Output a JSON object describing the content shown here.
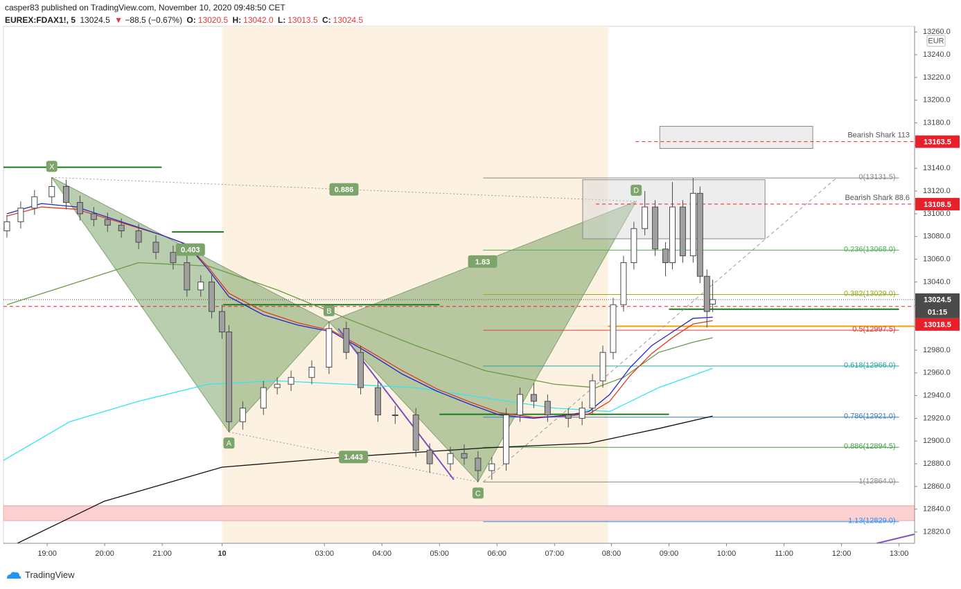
{
  "header": {
    "line1": "casper83 published on TradingView.com, November 10, 2020 09:48:50 CET",
    "symbol": "EUREX:FDAX1!, 5",
    "last": "13024.5",
    "arrow": "▼",
    "change": "−88.5 (−0.67%)",
    "ohlc_labels": [
      "O:",
      "H:",
      "L:",
      "C:"
    ],
    "ohlc_values": [
      "13020.5",
      "13042.0",
      "13013.5",
      "13024.5"
    ]
  },
  "footer": {
    "brand": "TradingView"
  },
  "chart_data": {
    "type": "candlestick",
    "currency": "EUR",
    "up_color": "#ffffff",
    "down_color": "#a0a0a0",
    "wick_color": "#4a4a4a",
    "x": [
      -0.7,
      -0.46,
      -0.22,
      0.08,
      0.33,
      0.57,
      0.81,
      1.05,
      1.29,
      1.59,
      1.89,
      2.19,
      2.43,
      2.67,
      2.86,
      3.04,
      3.16,
      3.4,
      3.76,
      4.0,
      4.24,
      4.6,
      4.9,
      5.2,
      5.45,
      5.75,
      6.05,
      6.41,
      6.65,
      7.01,
      7.25,
      7.49,
      7.73,
      7.98,
      8.22,
      8.46,
      8.7,
      9.06,
      9.3,
      9.48,
      9.66,
      9.84,
      10.02,
      10.2,
      10.39,
      10.57,
      10.75,
      10.87,
      11.05,
      11.23,
      11.35,
      11.47,
      11.57
    ],
    "open": [
      13085,
      13093,
      13105,
      13115,
      13124,
      13110,
      13100,
      13095,
      13090,
      13085,
      13075,
      13066,
      13057,
      13033,
      13040,
      13014,
      12996,
      12917,
      12929,
      12947,
      12950,
      12956,
      12965,
      12999,
      12978,
      12947,
      12923,
      12923,
      12892,
      12880,
      12889,
      12885,
      12874,
      12880,
      12923,
      12941,
      12935,
      12923,
      12920,
      12929,
      12953,
      12978,
      13020,
      13057,
      13087,
      13106,
      13069,
      13057,
      13106,
      13063,
      13118,
      13045,
      13020.5
    ],
    "high": [
      13099,
      13111,
      13121,
      13132,
      13130,
      13116,
      13106,
      13101,
      13096,
      13091,
      13081,
      13072,
      13063,
      13046,
      13046,
      13020,
      13002,
      12935,
      12953,
      12956,
      12962,
      12971,
      13005,
      13005,
      12984,
      12953,
      12931,
      12929,
      12898,
      12895,
      12897,
      12891,
      12886,
      12929,
      12947,
      12951,
      12941,
      12929,
      12935,
      12959,
      12984,
      13026,
      13063,
      13093,
      13120,
      13112,
      13075,
      13128,
      13112,
      13131.5,
      13124,
      13051,
      13042
    ],
    "low": [
      13079,
      13087,
      13099,
      13109,
      13104,
      13094,
      13089,
      13084,
      13079,
      13069,
      13060,
      13051,
      13027,
      13027,
      13008,
      12990,
      12908,
      12910,
      12923,
      12941,
      12944,
      12950,
      12959,
      12972,
      12941,
      12917,
      12915,
      12886,
      12872,
      12874,
      12879,
      12864,
      12866,
      12874,
      12917,
      12929,
      12917,
      12912,
      12914,
      12923,
      12947,
      12972,
      13014,
      13051,
      13081,
      13063,
      13045,
      13051,
      13057,
      13057,
      13039,
      13000,
      13013.5
    ],
    "close": [
      13093,
      13105,
      13115,
      13124,
      13110,
      13100,
      13095,
      13090,
      13085,
      13075,
      13066,
      13057,
      13033,
      13040,
      13014,
      12996,
      12917,
      12929,
      12947,
      12950,
      12956,
      12965,
      12999,
      12978,
      12947,
      12923,
      12923,
      12892,
      12880,
      12889,
      12885,
      12874,
      12880,
      12923,
      12941,
      12935,
      12923,
      12920,
      12929,
      12953,
      12978,
      13020,
      13057,
      13087,
      13106,
      13069,
      13057,
      13106,
      13063,
      13118,
      13045,
      13014,
      13024.5
    ],
    "xlim": [
      -0.76,
      15.08
    ],
    "xticks": [
      {
        "value": 0,
        "label": "19:00"
      },
      {
        "value": 1,
        "label": "20:00"
      },
      {
        "value": 2,
        "label": "21:00"
      },
      {
        "value": 3.04,
        "label": "10"
      },
      {
        "value": 4.82,
        "label": "03:00"
      },
      {
        "value": 5.82,
        "label": "04:00"
      },
      {
        "value": 6.82,
        "label": "05:00"
      },
      {
        "value": 7.82,
        "label": "06:00"
      },
      {
        "value": 8.82,
        "label": "07:00"
      },
      {
        "value": 9.81,
        "label": "08:00"
      },
      {
        "value": 10.81,
        "label": "09:00"
      },
      {
        "value": 11.81,
        "label": "10:00"
      },
      {
        "value": 12.81,
        "label": "11:00"
      },
      {
        "value": 13.81,
        "label": "12:00"
      },
      {
        "value": 14.81,
        "label": "13:00"
      }
    ],
    "ylim": [
      12810,
      13265
    ],
    "yticks": [
      {
        "value": 12820,
        "label": "12820.0"
      },
      {
        "value": 12840,
        "label": "12840.0"
      },
      {
        "value": 12860,
        "label": "12860.0"
      },
      {
        "value": 12880,
        "label": "12880.0"
      },
      {
        "value": 12900,
        "label": "12900.0"
      },
      {
        "value": 12920,
        "label": "12920.0"
      },
      {
        "value": 12940,
        "label": "12940.0"
      },
      {
        "value": 12960,
        "label": "12960.0"
      },
      {
        "value": 12980,
        "label": "12980.0"
      },
      {
        "value": 13000,
        "label": "13000.0"
      },
      {
        "value": 13020,
        "label": "13020.0"
      },
      {
        "value": 13040,
        "label": "13040.0"
      },
      {
        "value": 13060,
        "label": "13060.0"
      },
      {
        "value": 13080,
        "label": "13080.0"
      },
      {
        "value": 13100,
        "label": "13100.0"
      },
      {
        "value": 13120,
        "label": "13120.0"
      },
      {
        "value": 13140,
        "label": "13140.0"
      },
      {
        "value": 13160,
        "label": "13160.0"
      },
      {
        "value": 13180,
        "label": "13180.0"
      },
      {
        "value": 13200,
        "label": "13200.0"
      },
      {
        "value": 13220,
        "label": "13220.0"
      },
      {
        "value": 13240,
        "label": "13240.0"
      },
      {
        "value": 13260,
        "label": "13260.0"
      }
    ],
    "grid": false,
    "session": {
      "start": 3.04,
      "end": 9.75,
      "color": "#fdf1e2"
    },
    "zone": {
      "low": 12830,
      "high": 12843,
      "color": "#fbd0d0"
    },
    "lines": [
      {
        "color": "#33e4f2",
        "x": [
          -0.76,
          0.39,
          1.59,
          2.8,
          4.0,
          5.2,
          6.41,
          7.61,
          8.82,
          9.78,
          10.63,
          11.57
        ],
        "values": [
          12883,
          12917,
          12935,
          12950,
          12953,
          12950,
          12947,
          12938,
          12929,
          12926,
          12947,
          12964
        ]
      },
      {
        "color": "#111111",
        "x": [
          -0.52,
          0.99,
          3.04,
          5.2,
          7.61,
          9.42,
          10.63,
          11.57
        ],
        "values": [
          12810,
          12847,
          12877,
          12886,
          12894,
          12898,
          12911,
          12922
        ]
      },
      {
        "color": "#6a9a45",
        "x": [
          -0.7,
          1.59,
          2.8,
          4.0,
          5.2,
          6.41,
          7.61,
          8.82,
          9.54,
          10.02,
          10.63,
          11.23,
          11.57
        ],
        "values": [
          13020,
          13057,
          13054,
          13033,
          13008,
          12984,
          12962,
          12950,
          12947,
          12956,
          12978,
          12987,
          12991
        ]
      },
      {
        "color": "#e03a20",
        "x": [
          -0.7,
          -0.1,
          0.51,
          1.23,
          1.95,
          2.43,
          2.8,
          3.16,
          3.76,
          4.36,
          4.96,
          5.57,
          6.17,
          6.77,
          7.37,
          7.86,
          8.46,
          9.06,
          9.42,
          9.78,
          10.14,
          10.51,
          10.87,
          11.23,
          11.57
        ],
        "values": [
          13098,
          13106,
          13104,
          13093,
          13082,
          13073,
          13053,
          13030,
          13014,
          13004,
          12997,
          12980,
          12962,
          12946,
          12934,
          12925,
          12921,
          12922,
          12924,
          12935,
          12958,
          12977,
          12991,
          13003,
          13006
        ]
      },
      {
        "color": "#2424c8",
        "x": [
          -0.7,
          -0.1,
          0.51,
          1.23,
          1.95,
          2.43,
          2.8,
          3.16,
          3.76,
          4.36,
          4.96,
          5.57,
          6.17,
          6.77,
          7.37,
          7.86,
          8.46,
          9.06,
          9.42,
          9.78,
          10.14,
          10.51,
          10.87,
          11.23,
          11.57
        ],
        "values": [
          13100,
          13109,
          13106,
          13094,
          13082,
          13073,
          13051,
          13027,
          13011,
          13002,
          12996,
          12978,
          12959,
          12944,
          12932,
          12923,
          12920,
          12923,
          12926,
          12941,
          12965,
          12984,
          12996,
          13008,
          13009
        ]
      }
    ],
    "levels": [
      {
        "value": 13141,
        "x0": -0.76,
        "x1": 1.99,
        "color": "#1b7a1b"
      },
      {
        "value": 13084,
        "x0": 2.17,
        "x1": 3.07,
        "color": "#1b7a1b"
      },
      {
        "value": 13020,
        "x0": 3.06,
        "x1": 6.82,
        "color": "#1b7a1b"
      },
      {
        "value": 12923.5,
        "x0": 6.82,
        "x1": 10.81,
        "color": "#1b7a1b"
      },
      {
        "value": 13016,
        "x0": 10.81,
        "x1": 14.81,
        "color": "#1b7a1b"
      },
      {
        "value": 13001,
        "x0": 9.75,
        "x1": 15.08,
        "color": "#f0a000"
      }
    ],
    "trendlines": [
      {
        "x": [
          7.58,
          13.72
        ],
        "values": [
          12864,
          13131.5
        ],
        "color": "#999999",
        "style": "dashed"
      },
      {
        "x": [
          5.06,
          7.07
        ],
        "values": [
          12999,
          12866
        ],
        "color": "#7a4fc0",
        "style": "solid"
      },
      {
        "x": [
          14.42,
          15.08
        ],
        "values": [
          12810,
          12818
        ],
        "color": "#7a4fc0",
        "style": "solid"
      }
    ],
    "fib": {
      "x0": 7.58,
      "x1": 14.81,
      "levels": [
        {
          "label": "0(13131.5)",
          "value": 13131.5,
          "color": "#888888"
        },
        {
          "label": "0.236(13068.0)",
          "value": 13068,
          "color": "#4caf50"
        },
        {
          "label": "0.382(13029.0)",
          "value": 13029,
          "color": "#9aa820"
        },
        {
          "label": "0.5(12997.5)",
          "value": 12997.5,
          "color": "#e53935"
        },
        {
          "label": "0.618(12966.0)",
          "value": 12966,
          "color": "#26a69a"
        },
        {
          "label": "0.786(12921.0)",
          "value": 12921,
          "color": "#3a7fb5"
        },
        {
          "label": "0.886(12894.5)",
          "value": 12894.5,
          "color": "#43a047"
        },
        {
          "label": "1(12864.0)",
          "value": 12864,
          "color": "#888888"
        },
        {
          "label": "1.13(12829.0)",
          "value": 12829,
          "color": "#2196f3"
        }
      ]
    },
    "pattern": {
      "color": "#7da56b",
      "points": [
        {
          "label": "X",
          "x": 0.08,
          "y": 13132
        },
        {
          "label": "A",
          "x": 3.16,
          "y": 12908
        },
        {
          "label": "B",
          "x": 4.9,
          "y": 13005
        },
        {
          "label": "C",
          "x": 7.49,
          "y": 12864
        },
        {
          "label": "D",
          "x": 10.24,
          "y": 13111
        }
      ],
      "ratios": [
        0.886,
        0.403,
        1.83,
        1.443
      ]
    },
    "targets": [
      {
        "label": "Bearish Shark 113",
        "value": 13163.5,
        "x0": 10.23,
        "box": {
          "x0": 10.65,
          "x1": 13.31,
          "low": 13157.5,
          "high": 13177
        }
      },
      {
        "label": "Bearish Shark 88.6",
        "value": 13108.5,
        "x0": 9.54,
        "box": {
          "x0": 9.31,
          "x1": 12.48,
          "low": 13078,
          "high": 13130
        }
      }
    ],
    "price_labels": [
      {
        "value": 13163.5,
        "color": "#e8202a"
      },
      {
        "value": 13108.5,
        "color": "#e8202a"
      },
      {
        "value": 13024.5,
        "color": "#4a4a4a",
        "countdown": "01:15",
        "line": "dotted"
      },
      {
        "value": 13018.5,
        "color": "#e8202a",
        "line": "dashed"
      }
    ]
  }
}
